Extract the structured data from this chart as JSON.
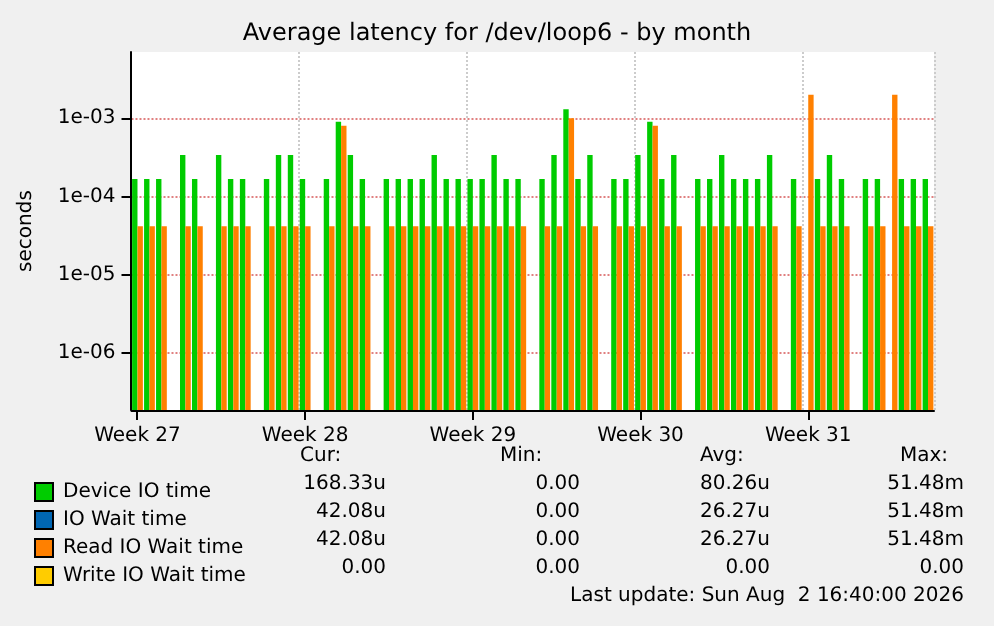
{
  "chart_data": {
    "type": "bar",
    "title": "Average latency for /dev/loop6 - by month",
    "ylabel": "seconds",
    "log": "y",
    "grid": true,
    "legend": "bottom left",
    "ylim": [
      1.9e-07,
      0.007
    ],
    "yticks": [
      {
        "value": 1e-06,
        "label": "1e-06"
      },
      {
        "value": 1e-05,
        "label": "1e-05"
      },
      {
        "value": 0.0001,
        "label": "1e-04"
      },
      {
        "value": 0.001,
        "label": "1e-03"
      }
    ],
    "categories": [
      "Week 27",
      null,
      null,
      null,
      null,
      null,
      null,
      null,
      null,
      null,
      null,
      null,
      null,
      null,
      "Week 28",
      null,
      null,
      null,
      null,
      null,
      null,
      null,
      null,
      null,
      null,
      null,
      null,
      null,
      "Week 29",
      null,
      null,
      null,
      null,
      null,
      null,
      null,
      null,
      null,
      null,
      null,
      null,
      null,
      "Week 30",
      null,
      null,
      null,
      null,
      null,
      null,
      null,
      null,
      null,
      null,
      null,
      null,
      null,
      "Week 31",
      null,
      null,
      null,
      null,
      null,
      null,
      null,
      null,
      null,
      null
    ],
    "series": [
      {
        "name": "Device IO time",
        "color": "#00cc00",
        "values": [
          0.000168,
          0.000168,
          0.000168,
          null,
          0.00034,
          0.000168,
          null,
          0.00034,
          0.000168,
          0.000168,
          null,
          0.000168,
          0.00034,
          0.00034,
          0.000168,
          null,
          0.000168,
          0.0009,
          0.00034,
          0.000168,
          null,
          0.000168,
          0.000168,
          0.000168,
          0.000168,
          0.00034,
          0.000168,
          0.000168,
          0.000168,
          0.000168,
          0.00034,
          0.000168,
          0.000168,
          null,
          0.000168,
          0.00034,
          0.0013,
          0.000168,
          0.00034,
          null,
          0.000168,
          0.000168,
          0.00034,
          0.0009,
          0.000168,
          0.00034,
          null,
          0.000168,
          0.000168,
          0.00034,
          0.000168,
          0.000168,
          0.000168,
          0.00034,
          null,
          0.000168,
          null,
          0.000168,
          0.00034,
          0.000168,
          null,
          0.000168,
          0.000168,
          null,
          0.000168,
          0.000168,
          0.000168
        ]
      },
      {
        "name": "IO Wait time",
        "color": "#0066b3",
        "values": [
          null,
          null,
          null,
          null,
          null,
          null,
          null,
          null,
          null,
          null,
          null,
          null,
          null,
          null,
          null,
          null,
          null,
          null,
          null,
          null,
          null,
          null,
          null,
          null,
          null,
          null,
          null,
          null,
          null,
          null,
          null,
          null,
          null,
          null,
          null,
          null,
          null,
          null,
          null,
          null,
          null,
          null,
          null,
          null,
          null,
          null,
          null,
          null,
          null,
          null,
          null,
          null,
          null,
          null,
          null,
          null,
          null,
          null,
          null,
          null,
          null,
          null,
          null,
          null,
          null,
          null,
          null
        ]
      },
      {
        "name": "Read IO Wait time",
        "color": "#ff8000",
        "values": [
          4.2e-05,
          4.2e-05,
          4.2e-05,
          null,
          4.2e-05,
          4.2e-05,
          null,
          4.2e-05,
          4.2e-05,
          4.2e-05,
          null,
          4.2e-05,
          4.2e-05,
          4.2e-05,
          4.2e-05,
          null,
          4.2e-05,
          0.0008,
          4.2e-05,
          4.2e-05,
          null,
          4.2e-05,
          4.2e-05,
          4.2e-05,
          4.2e-05,
          4.2e-05,
          4.2e-05,
          4.2e-05,
          4.2e-05,
          4.2e-05,
          4.2e-05,
          4.2e-05,
          4.2e-05,
          null,
          4.2e-05,
          4.2e-05,
          0.001,
          4.2e-05,
          4.2e-05,
          null,
          4.2e-05,
          4.2e-05,
          4.2e-05,
          0.0008,
          4.2e-05,
          4.2e-05,
          null,
          4.2e-05,
          4.2e-05,
          4.2e-05,
          4.2e-05,
          4.2e-05,
          4.2e-05,
          4.2e-05,
          null,
          4.2e-05,
          0.002,
          4.2e-05,
          4.2e-05,
          4.2e-05,
          null,
          4.2e-05,
          4.2e-05,
          0.002,
          4.2e-05,
          4.2e-05,
          4.2e-05
        ]
      },
      {
        "name": "Write IO Wait time",
        "color": "#ffcc00",
        "values": [
          null,
          null,
          null,
          null,
          null,
          null,
          null,
          null,
          null,
          null,
          null,
          null,
          null,
          null,
          null,
          null,
          null,
          null,
          null,
          null,
          null,
          null,
          null,
          null,
          null,
          null,
          null,
          null,
          null,
          null,
          null,
          null,
          null,
          null,
          null,
          null,
          null,
          null,
          null,
          null,
          null,
          null,
          null,
          null,
          null,
          null,
          null,
          null,
          null,
          null,
          null,
          null,
          null,
          null,
          null,
          null,
          null,
          null,
          null,
          null,
          null,
          null,
          null,
          null,
          null,
          null,
          null
        ]
      }
    ],
    "annotations": [
      "Cur:",
      "Min:",
      "Avg:",
      "Max:",
      "168.33u",
      "0.00",
      "80.26u",
      "51.48m",
      "42.08u",
      "0.00",
      "26.27u",
      "51.48m",
      "42.08u",
      "0.00",
      "26.27u",
      "51.48m",
      "0.00",
      "0.00",
      "0.00",
      "0.00",
      "Last update: Sun Aug  2 16:40:00 2026"
    ]
  }
}
